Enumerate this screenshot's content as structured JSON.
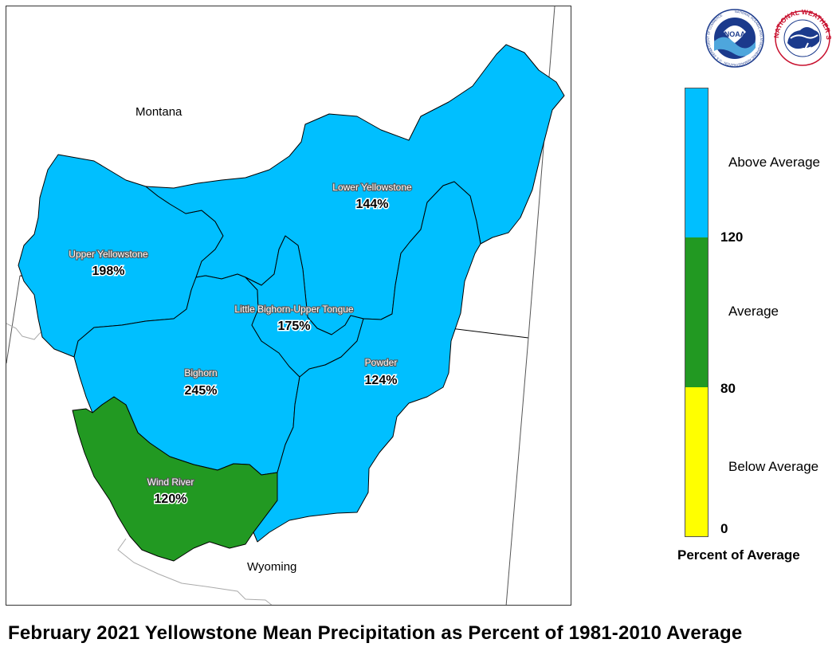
{
  "title": "February 2021 Yellowstone Mean Precipitation as Percent of 1981-2010 Average",
  "states": [
    "Montana",
    "Wyoming"
  ],
  "colors": {
    "above": "#00bfff",
    "average": "#229922",
    "below": "#ffff00",
    "outline": "#000000"
  },
  "basins": [
    {
      "name": "Upper Yellowstone",
      "percent": "198%",
      "category": "above"
    },
    {
      "name": "Lower Yellowstone",
      "percent": "144%",
      "category": "above"
    },
    {
      "name": "Little Bighorn-Upper Tongue",
      "percent": "175%",
      "category": "above"
    },
    {
      "name": "Bighorn",
      "percent": "245%",
      "category": "above"
    },
    {
      "name": "Powder",
      "percent": "124%",
      "category": "above"
    },
    {
      "name": "Wind River",
      "percent": "120%",
      "category": "average"
    }
  ],
  "legend": {
    "title": "Percent of Average",
    "categories": [
      "Above Average",
      "Average",
      "Below Average"
    ],
    "ticks": [
      "120",
      "80",
      "0"
    ]
  },
  "logos": {
    "noaa": {
      "text": "NOAA",
      "ring_text": "NATIONAL OCEANIC AND ATMOSPHERIC ADMINISTRATION · U.S. DEPARTMENT OF COMMERCE"
    },
    "nws": {
      "ring_text": "NATIONAL WEATHER SERVICE"
    }
  }
}
